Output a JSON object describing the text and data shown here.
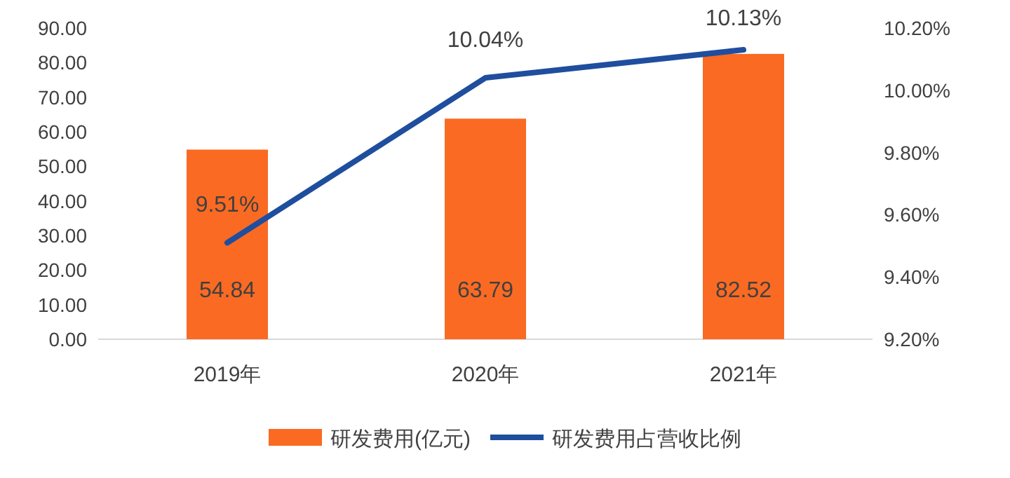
{
  "chart_data": {
    "type": "bar",
    "categories": [
      "2019年",
      "2020年",
      "2021年"
    ],
    "series": [
      {
        "name": "研发费用(亿元)",
        "color": "#fa6a23",
        "values": [
          54.84,
          63.79,
          82.52
        ],
        "value_labels": [
          "54.84",
          "63.79",
          "82.52"
        ]
      },
      {
        "name": "研发费用占营收比例",
        "type": "line",
        "axis": "y2",
        "color": "#1f4e9e",
        "values": [
          9.51,
          10.04,
          10.13
        ],
        "value_labels": [
          "9.51%",
          "10.04%",
          "10.13%"
        ]
      }
    ],
    "ylim": [
      0,
      90
    ],
    "yticks": [
      {
        "value": 0,
        "label": "0.00"
      },
      {
        "value": 10,
        "label": "10.00"
      },
      {
        "value": 20,
        "label": "20.00"
      },
      {
        "value": 30,
        "label": "30.00"
      },
      {
        "value": 40,
        "label": "40.00"
      },
      {
        "value": 50,
        "label": "50.00"
      },
      {
        "value": 60,
        "label": "60.00"
      },
      {
        "value": 70,
        "label": "70.00"
      },
      {
        "value": 80,
        "label": "80.00"
      },
      {
        "value": 90,
        "label": "90.00"
      }
    ],
    "y2lim": [
      9.2,
      10.2
    ],
    "y2ticks": [
      {
        "value": 9.2,
        "label": "9.20%"
      },
      {
        "value": 9.4,
        "label": "9.40%"
      },
      {
        "value": 9.6,
        "label": "9.60%"
      },
      {
        "value": 9.8,
        "label": "9.80%"
      },
      {
        "value": 10.0,
        "label": "10.00%"
      },
      {
        "value": 10.2,
        "label": "10.20%"
      }
    ],
    "legend": "bottom"
  }
}
